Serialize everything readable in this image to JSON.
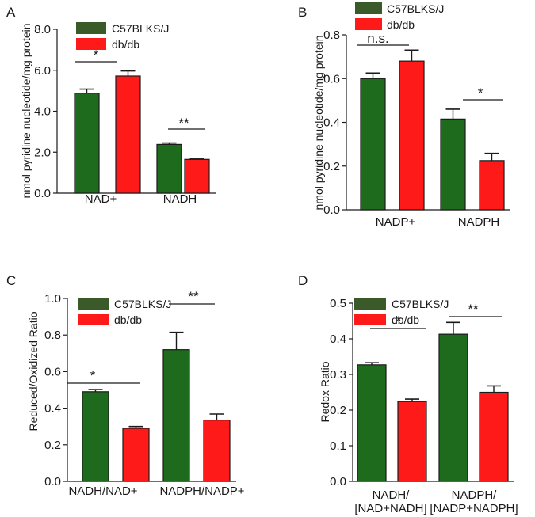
{
  "colors": {
    "C57BLKS/J": "#1e6b1e",
    "db/db": "#ff1a1a",
    "legend_green": "#3a5a2a",
    "axis": "#1a1a1a"
  },
  "chart_data": [
    {
      "id": "A",
      "type": "bar",
      "panel_label": "A",
      "ylabel": "nmol pyridine nucleotide/mg protein",
      "ylim": [
        0,
        8
      ],
      "yticks": [
        "0.0",
        "2.0",
        "4.0",
        "6.0",
        "8.0"
      ],
      "categories": [
        [
          "NAD+"
        ],
        [
          "NADH"
        ]
      ],
      "legend": [
        "C57BLKS/J",
        "db/db"
      ],
      "series": [
        {
          "name": "C57BLKS/J",
          "values": [
            4.88,
            2.38
          ],
          "errors": [
            0.2,
            0.07
          ]
        },
        {
          "name": "db/db",
          "values": [
            5.72,
            1.65
          ],
          "errors": [
            0.25,
            0.05
          ]
        }
      ],
      "significance": [
        "*",
        "**"
      ]
    },
    {
      "id": "B",
      "type": "bar",
      "panel_label": "B",
      "ylabel": "nmol pyridine nucleotide/mg protein",
      "ylim": [
        0,
        0.8
      ],
      "yticks": [
        "0.0",
        "0.2",
        "0.4",
        "0.6",
        "0.8"
      ],
      "categories": [
        [
          "NADP+"
        ],
        [
          "NADPH"
        ]
      ],
      "legend": [
        "C57BLKS/J",
        "db/db"
      ],
      "series": [
        {
          "name": "C57BLKS/J",
          "values": [
            0.6,
            0.415
          ],
          "errors": [
            0.025,
            0.045
          ]
        },
        {
          "name": "db/db",
          "values": [
            0.68,
            0.225
          ],
          "errors": [
            0.05,
            0.033
          ]
        }
      ],
      "significance": [
        "n.s.",
        "*"
      ]
    },
    {
      "id": "C",
      "type": "bar",
      "panel_label": "C",
      "ylabel": "Reduced/Oxidized Ratio",
      "ylim": [
        0,
        1
      ],
      "yticks": [
        "0.0",
        "0.2",
        "0.4",
        "0.6",
        "0.8",
        "1.0"
      ],
      "categories": [
        [
          "NADH/NAD+"
        ],
        [
          "NADPH/NADP+"
        ]
      ],
      "legend": [
        "C57BLKS/J",
        "db/db"
      ],
      "series": [
        {
          "name": "C57BLKS/J",
          "values": [
            0.49,
            0.72
          ],
          "errors": [
            0.012,
            0.095
          ]
        },
        {
          "name": "db/db",
          "values": [
            0.29,
            0.335
          ],
          "errors": [
            0.01,
            0.033
          ]
        }
      ],
      "significance": [
        "*",
        "**"
      ]
    },
    {
      "id": "D",
      "type": "bar",
      "panel_label": "D",
      "ylabel": "Redox Ratio",
      "ylim": [
        0,
        0.5
      ],
      "yticks": [
        "0.0",
        "0.1",
        "0.2",
        "0.3",
        "0.4",
        "0.5"
      ],
      "categories": [
        [
          "NADH/",
          "[NAD+NADH]"
        ],
        [
          "NADPH/",
          "[NADP+NADPH]"
        ]
      ],
      "legend": [
        "C57BLKS/J",
        "db/db"
      ],
      "series": [
        {
          "name": "C57BLKS/J",
          "values": [
            0.327,
            0.413
          ],
          "errors": [
            0.006,
            0.033
          ]
        },
        {
          "name": "db/db",
          "values": [
            0.224,
            0.25
          ],
          "errors": [
            0.007,
            0.018
          ]
        }
      ],
      "significance": [
        "*",
        "**"
      ]
    }
  ]
}
